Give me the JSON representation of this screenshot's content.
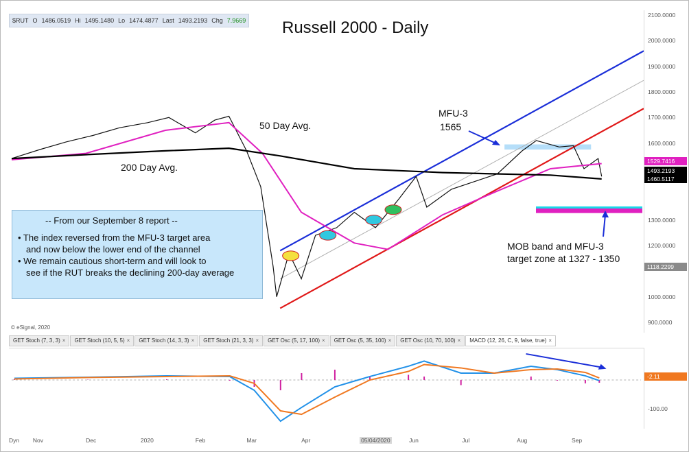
{
  "quote": {
    "symbol": "$RUT",
    "open_label": "O",
    "open": "1486.0519",
    "high_label": "Hi",
    "high": "1495.1480",
    "low_label": "Lo",
    "low": "1474.4877",
    "last_label": "Last",
    "last": "1493.2193",
    "change_label": "Chg",
    "change": "7.9669"
  },
  "title": "Russell 2000 - Daily",
  "annotations": {
    "fifty_day": "50 Day Avg.",
    "two_hundred_day": "200 Day Avg.",
    "mfu_title": "MFU-3",
    "mfu_value": "1565",
    "mob_line1": "MOB band and MFU-3",
    "mob_line2": "target zone at 1327 - 1350"
  },
  "report": {
    "heading": "-- From our September 8 report --",
    "bullet1_line1": "• The index reversed from the MFU-3 target area",
    "bullet1_line2": "and now below the lower end of the channel",
    "bullet2_line1": "• We remain cautious short-term and will look to",
    "bullet2_line2": "see if the RUT breaks the declining 200-day average"
  },
  "copyright": "© eSignal, 2020",
  "tabs": [
    {
      "label": "GET Stoch (7, 3, 3)"
    },
    {
      "label": "GET Stoch (10, 5, 5)"
    },
    {
      "label": "GET Stoch (14, 3, 3)"
    },
    {
      "label": "GET Stoch (21, 3, 3)"
    },
    {
      "label": "GET Osc (5, 17, 100)"
    },
    {
      "label": "GET Osc (5, 35, 100)"
    },
    {
      "label": "GET Osc (10, 70, 100)"
    },
    {
      "label": "MACD (12, 26, C, 9, false, true)"
    }
  ],
  "price_axis_labels": [
    "2100.0000",
    "2000.0000",
    "1900.0000",
    "1800.0000",
    "1700.0000",
    "1600.0000",
    "1300.0000",
    "1200.0000",
    "1000.0000",
    "900.0000"
  ],
  "price_tags": [
    {
      "label": "1529.7416",
      "color": "#e020c0"
    },
    {
      "label": "1493.2193",
      "color": "#000000"
    },
    {
      "label": "1460.5117",
      "color": "#000000"
    },
    {
      "label": "1118.2299",
      "color": "#8a8a8a"
    }
  ],
  "macd_axis": {
    "zero_tag": "-2.11",
    "bottom_tick": "-100.00",
    "zero_tag_color": "#f07820"
  },
  "date_labels": [
    "Dyn",
    "Nov",
    "Dec",
    "2020",
    "Feb",
    "Mar",
    "Apr",
    "05/04/2020",
    "Jun",
    "Jul",
    "Aug",
    "Sep"
  ],
  "colors": {
    "ma50": "#e020c0",
    "ma200": "#000000",
    "channel_upper": "#1a2ed8",
    "channel_lower": "#e01818",
    "channel_mid": "#b0b0b0",
    "mob_band": "#e020c0",
    "mob_band_top": "#18d8e8",
    "mfu_zone": "#a8d8f8",
    "macd_line": "#2090e8",
    "signal_line": "#f07820",
    "histogram": "#d020a0"
  },
  "chart_data": {
    "type": "line",
    "title": "Russell 2000 - Daily",
    "ylim": [
      900,
      2100
    ],
    "series": [
      {
        "name": "$RUT",
        "x": [
          "2019-10-20",
          "2019-11-05",
          "2019-11-20",
          "2019-12-05",
          "2019-12-20",
          "2020-01-05",
          "2020-01-17",
          "2020-02-01",
          "2020-02-12",
          "2020-02-20",
          "2020-03-01",
          "2020-03-09",
          "2020-03-16",
          "2020-03-18",
          "2020-03-25",
          "2020-04-01",
          "2020-04-09",
          "2020-04-21",
          "2020-05-01",
          "2020-05-13",
          "2020-05-26",
          "2020-06-05",
          "2020-06-11",
          "2020-06-25",
          "2020-07-08",
          "2020-07-21",
          "2020-08-04",
          "2020-08-12",
          "2020-08-25",
          "2020-09-02",
          "2020-09-08",
          "2020-09-16",
          "2020-09-18"
        ],
        "values": [
          1540,
          1575,
          1605,
          1630,
          1660,
          1680,
          1700,
          1640,
          1690,
          1705,
          1570,
          1430,
          1120,
          1000,
          1170,
          1070,
          1240,
          1270,
          1330,
          1270,
          1380,
          1470,
          1350,
          1420,
          1450,
          1480,
          1570,
          1610,
          1585,
          1590,
          1500,
          1540,
          1470
        ]
      },
      {
        "name": "50 Day Avg.",
        "x": [
          "2019-10-20",
          "2019-12-01",
          "2020-01-15",
          "2020-02-20",
          "2020-03-10",
          "2020-04-01",
          "2020-05-01",
          "2020-05-20",
          "2020-06-20",
          "2020-07-20",
          "2020-08-20",
          "2020-09-18"
        ],
        "values": [
          1535,
          1560,
          1650,
          1680,
          1560,
          1330,
          1210,
          1185,
          1320,
          1410,
          1500,
          1520
        ]
      },
      {
        "name": "200 Day Avg.",
        "x": [
          "2019-10-20",
          "2019-12-01",
          "2020-01-15",
          "2020-02-20",
          "2020-03-20",
          "2020-05-01",
          "2020-06-20",
          "2020-07-20",
          "2020-08-20",
          "2020-09-18"
        ],
        "values": [
          1540,
          1555,
          1570,
          1580,
          1550,
          1500,
          1485,
          1480,
          1475,
          1460
        ]
      }
    ],
    "channel": {
      "upper": [
        1180,
        1960
      ],
      "middle": [
        1070,
        1845
      ],
      "lower": [
        955,
        1735
      ]
    },
    "mfu_zone": {
      "label": "MFU-3",
      "value": 1565
    },
    "mob_band": [
      1327,
      1350
    ],
    "macd": {
      "ylim": [
        -130,
        80
      ],
      "value_shown": -2.11
    }
  }
}
